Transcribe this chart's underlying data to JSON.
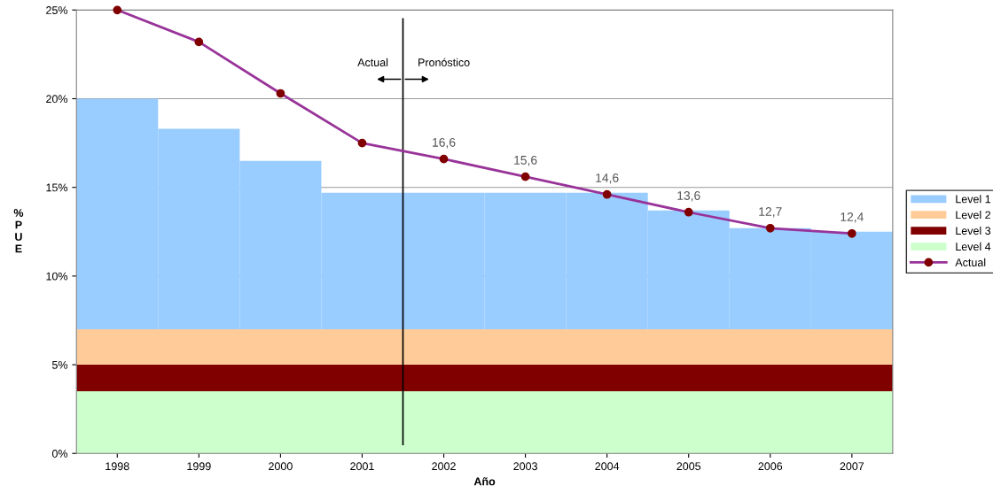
{
  "chart_data": {
    "type": "bar",
    "xlabel": "Año",
    "ylabel": "%PUE",
    "x": [
      1998,
      1999,
      2000,
      2001,
      2002,
      2003,
      2004,
      2005,
      2006,
      2007
    ],
    "xlim": [
      1997.5,
      2007.5
    ],
    "xticks": [
      1998,
      1999,
      2000,
      2001,
      2002,
      2003,
      2004,
      2005,
      2006,
      2007
    ],
    "ylim": [
      0,
      25
    ],
    "yticks": [
      {
        "value": 0,
        "label": "0%"
      },
      {
        "value": 5,
        "label": "5%"
      },
      {
        "value": 10,
        "label": "10%"
      },
      {
        "value": 15,
        "label": "15%"
      },
      {
        "value": 20,
        "label": "20%"
      },
      {
        "value": 25,
        "label": "25%"
      }
    ],
    "grid": "y",
    "legend": "right",
    "series": [
      {
        "name": "Level 1",
        "color": "#99ccff",
        "base": [
          7,
          7,
          7,
          7,
          7,
          7,
          7,
          7,
          7,
          7
        ],
        "values": [
          13,
          11.3,
          9.5,
          7.7,
          7.7,
          7.7,
          7.7,
          6.7,
          5.7,
          5.5
        ]
      },
      {
        "name": "Actual",
        "type": "line",
        "color": "#993399",
        "marker": "circle",
        "values": [
          25,
          23.2,
          20.3,
          17.5,
          16.6,
          15.6,
          14.6,
          13.6,
          12.7,
          12.4
        ],
        "value_labels": [
          null,
          null,
          null,
          null,
          "16,6",
          "15,6",
          "14,6",
          "13,6",
          "12,7",
          "12,4"
        ]
      }
    ],
    "bands": [
      {
        "axis": "y",
        "from": 5,
        "to": 7,
        "label": "Level 2",
        "color": "#ffcc99"
      },
      {
        "axis": "y",
        "from": 3.5,
        "to": 5,
        "label": "Level 3",
        "color": "#800000"
      },
      {
        "axis": "y",
        "from": 0,
        "to": 3.5,
        "label": "Level 4",
        "color": "#ccffcc"
      }
    ],
    "ref_lines": [
      {
        "axis": "x",
        "value": 2001.5,
        "color": "#000000"
      }
    ],
    "annotations": [
      "Actual",
      "Pronóstico"
    ]
  }
}
